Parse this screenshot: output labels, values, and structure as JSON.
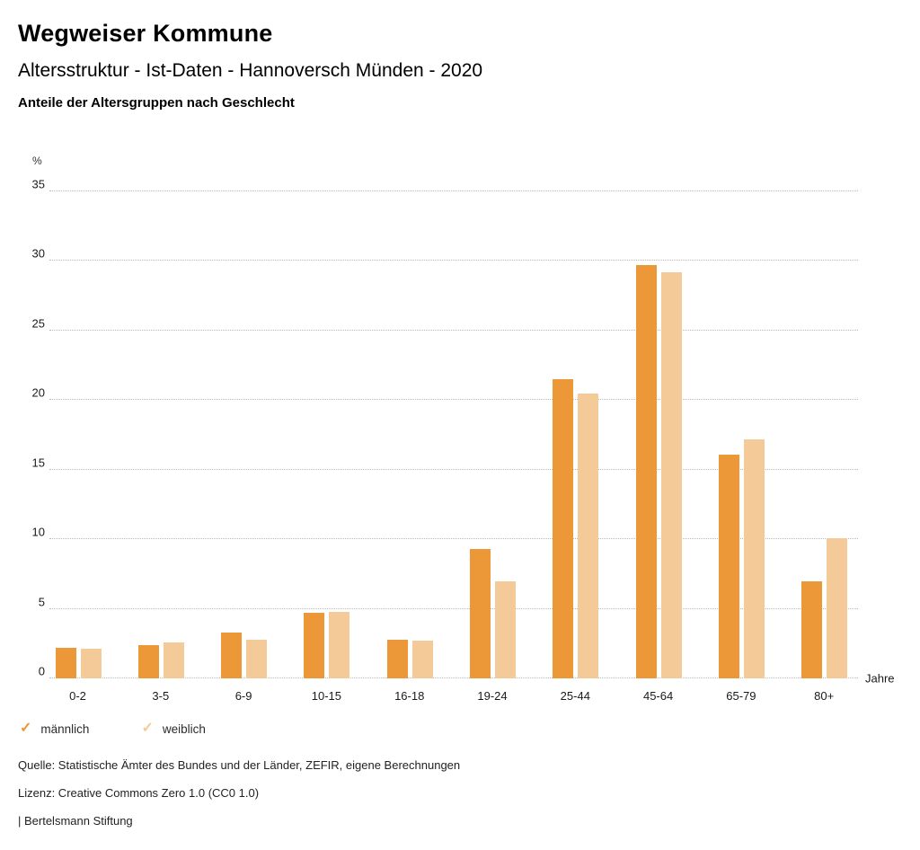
{
  "header": {
    "title": "Wegweiser Kommune",
    "subtitle": "Altersstruktur - Ist-Daten - Hannoversch Münden - 2020",
    "chart_heading": "Anteile der Altersgruppen nach Geschlecht"
  },
  "chart_data": {
    "type": "bar",
    "title": "Anteile der Altersgruppen nach Geschlecht",
    "categories": [
      "0-2",
      "3-5",
      "6-9",
      "10-15",
      "16-18",
      "19-24",
      "25-44",
      "45-64",
      "65-79",
      "80+"
    ],
    "series": [
      {
        "name": "männlich",
        "color": "#ED9838",
        "values": [
          2.2,
          2.4,
          3.3,
          4.7,
          2.8,
          9.3,
          21.5,
          29.7,
          16.1,
          7.0
        ]
      },
      {
        "name": "weiblich",
        "color": "#F4CB98",
        "values": [
          2.1,
          2.6,
          2.8,
          4.8,
          2.7,
          7.0,
          20.5,
          29.2,
          17.2,
          10.1
        ]
      }
    ],
    "xlabel": "Jahre",
    "ylabel": "%",
    "ylim": [
      0,
      35
    ],
    "ytick_step": 5,
    "yticks": [
      0,
      5,
      10,
      15,
      20,
      25,
      30,
      35
    ],
    "grid": "horizontal-dotted",
    "legend_position": "bottom-left"
  },
  "legend": {
    "check_glyph": "✓",
    "items": [
      {
        "label": "männlich",
        "color": "#ED9838"
      },
      {
        "label": "weiblich",
        "color": "#F4CB98"
      }
    ]
  },
  "footer": {
    "source": "Quelle: Statistische Ämter des Bundes und der Länder, ZEFIR, eigene Berechnungen",
    "license": "Lizenz: Creative Commons Zero 1.0 (CC0 1.0)",
    "brand": "| Bertelsmann Stiftung"
  }
}
